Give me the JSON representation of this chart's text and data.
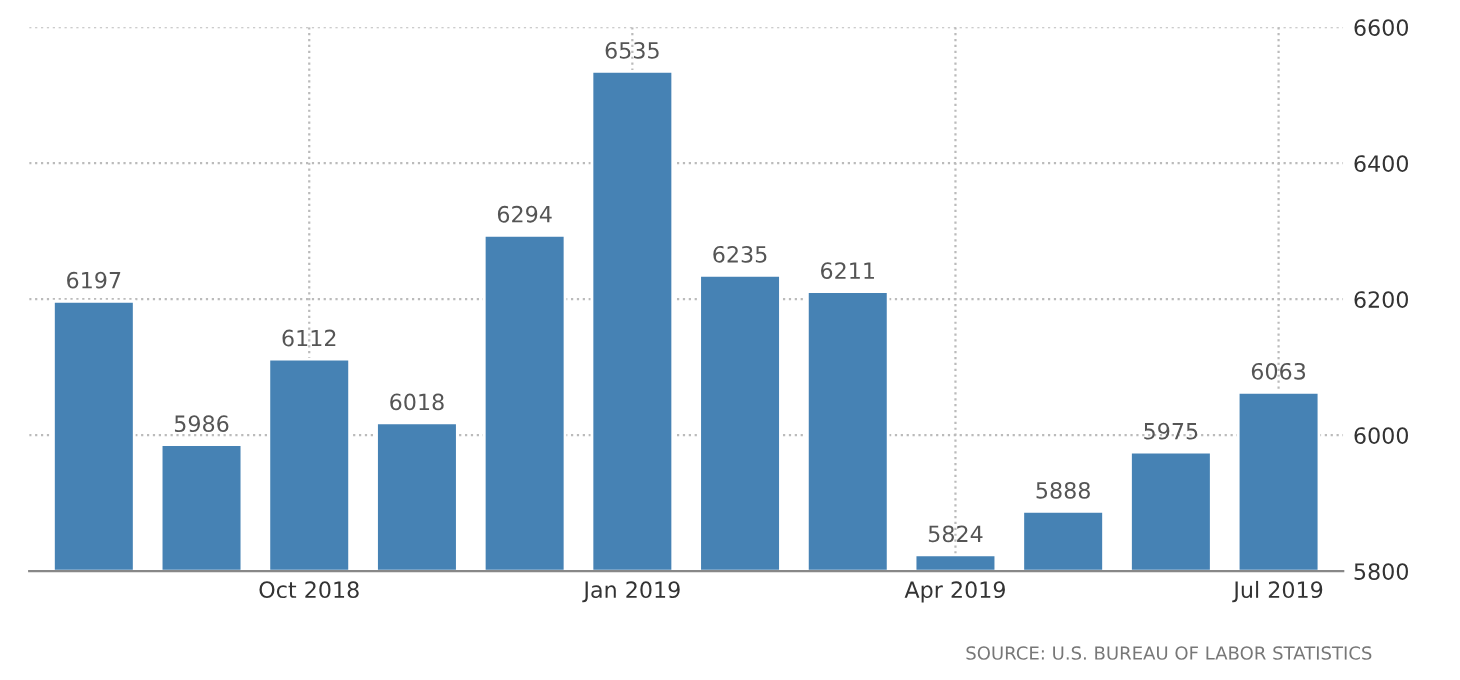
{
  "chart_data": {
    "type": "bar",
    "categories": [
      null,
      null,
      "Oct 2018",
      null,
      null,
      "Jan 2019",
      null,
      null,
      "Apr 2019",
      null,
      null,
      "Jul 2019"
    ],
    "values": [
      6197,
      5986,
      6112,
      6018,
      6294,
      6535,
      6235,
      6211,
      5824,
      5888,
      5975,
      6063
    ],
    "color": "#4682b4",
    "ylim": [
      5800,
      6600
    ],
    "yticks": [
      5800,
      6000,
      6200,
      6400,
      6600
    ],
    "grid": true,
    "data_labels": true,
    "annotations": [
      "SOURCE: U.S. BUREAU OF LABOR STATISTICS"
    ]
  }
}
